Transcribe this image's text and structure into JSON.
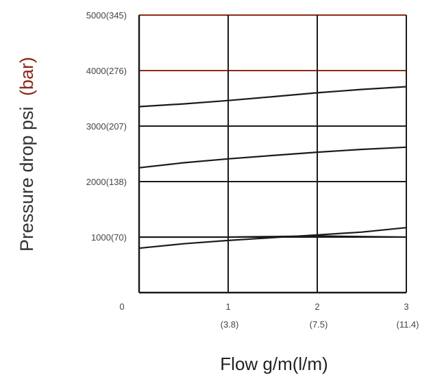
{
  "chart_data": {
    "type": "line",
    "title": "",
    "xlabel": "Flow g/m(l/m)",
    "ylabel_main": "Pressure drop psi",
    "ylabel_unit": "(bar)",
    "xlim": [
      0,
      3
    ],
    "ylim": [
      0,
      5000
    ],
    "grid": true,
    "x_ticks": [
      {
        "value": 0,
        "label": "0",
        "sublabel": ""
      },
      {
        "value": 1,
        "label": "1",
        "sublabel": "(3.8)"
      },
      {
        "value": 2,
        "label": "2",
        "sublabel": "(7.5)"
      },
      {
        "value": 3,
        "label": "3",
        "sublabel": "(11.4)"
      }
    ],
    "y_ticks": [
      {
        "value": 1000,
        "label": "1000(70)"
      },
      {
        "value": 2000,
        "label": "2000(138)"
      },
      {
        "value": 3000,
        "label": "3000(207)"
      },
      {
        "value": 4000,
        "label": "4000(276)"
      },
      {
        "value": 5000,
        "label": "5000(345)"
      }
    ],
    "series": [
      {
        "x": [
          0,
          0.5,
          1,
          1.5,
          2,
          2.5,
          3
        ],
        "values": [
          800,
          880,
          940,
          990,
          1040,
          1090,
          1170
        ]
      },
      {
        "x": [
          0,
          0.5,
          1,
          1.5,
          2,
          2.5,
          3
        ],
        "values": [
          1000,
          1000,
          1000,
          1010,
          1020,
          1010,
          1000
        ]
      },
      {
        "x": [
          0,
          0.5,
          1,
          1.5,
          2,
          2.5,
          3
        ],
        "values": [
          2250,
          2340,
          2410,
          2470,
          2530,
          2580,
          2620
        ]
      },
      {
        "x": [
          0,
          0.5,
          1,
          1.5,
          2,
          2.5,
          3
        ],
        "values": [
          3350,
          3400,
          3460,
          3530,
          3600,
          3660,
          3710
        ]
      }
    ],
    "colors": {
      "axis": "#1a1a1a",
      "grid": "#1a1a1a",
      "grid_accent": "#8b2a1a",
      "line": "#1a1a1a",
      "ylabel_unit": "#8b2a1a"
    }
  }
}
